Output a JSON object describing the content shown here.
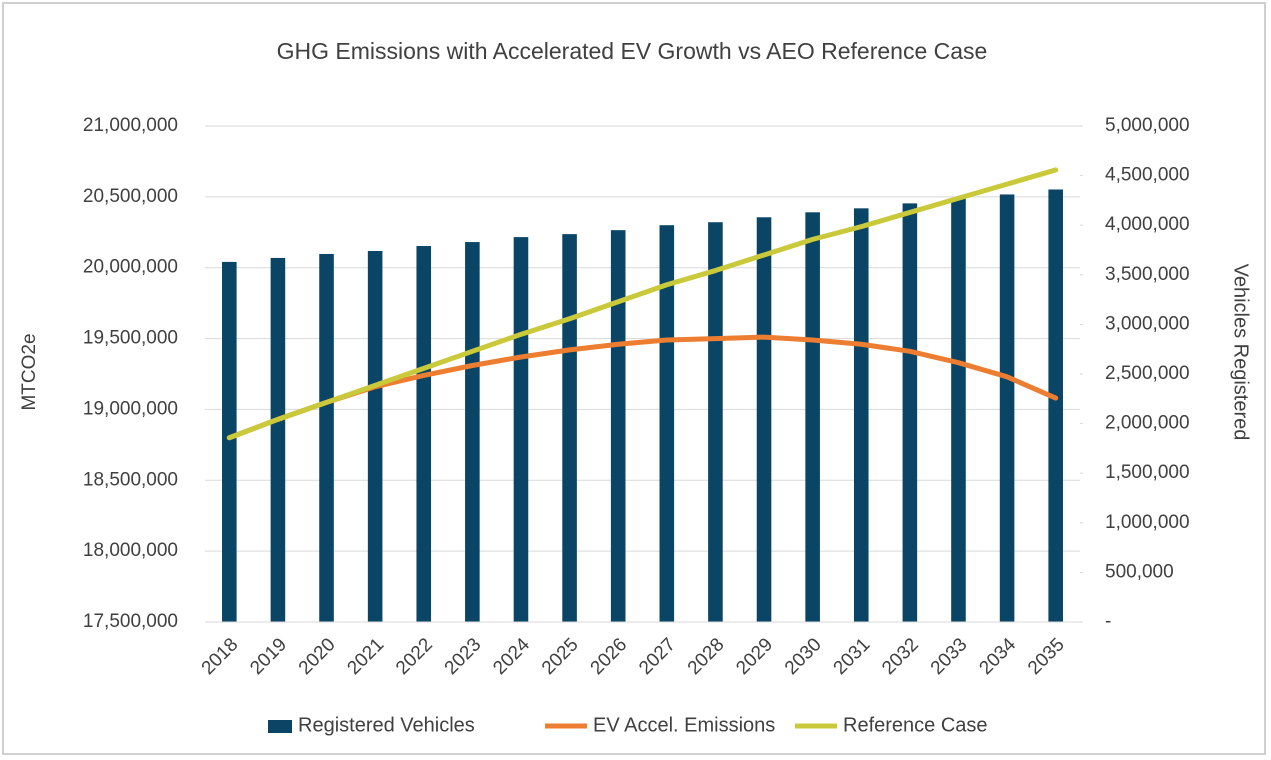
{
  "chart_data": {
    "type": "combo",
    "title": "GHG Emissions with Accelerated EV Growth vs AEO Reference Case",
    "ylabel": "MTCO2e",
    "y2label": "Vehicles Registered",
    "categories": [
      "2018",
      "2019",
      "2020",
      "2021",
      "2022",
      "2023",
      "2024",
      "2025",
      "2026",
      "2027",
      "2028",
      "2029",
      "2030",
      "2031",
      "2032",
      "2033",
      "2034",
      "2035"
    ],
    "series": [
      {
        "name": "Registered Vehicles",
        "type": "bar",
        "axis": "y2",
        "color": "#0b4566",
        "values": [
          3630000,
          3670000,
          3710000,
          3740000,
          3790000,
          3830000,
          3880000,
          3910000,
          3950000,
          4000000,
          4030000,
          4080000,
          4130000,
          4170000,
          4220000,
          4270000,
          4310000,
          4360000
        ]
      },
      {
        "name": "EV Accel. Emissions",
        "type": "line",
        "axis": "y",
        "color": "#ed7d31",
        "values": [
          18800000,
          18930000,
          19050000,
          19160000,
          19240000,
          19310000,
          19370000,
          19420000,
          19460000,
          19490000,
          19500000,
          19510000,
          19490000,
          19460000,
          19410000,
          19330000,
          19230000,
          19080000
        ]
      },
      {
        "name": "Reference Case",
        "type": "line",
        "axis": "y",
        "color": "#c9c93a",
        "values": [
          18800000,
          18930000,
          19050000,
          19170000,
          19290000,
          19410000,
          19530000,
          19640000,
          19760000,
          19880000,
          19980000,
          20090000,
          20200000,
          20290000,
          20390000,
          20490000,
          20590000,
          20690000
        ]
      }
    ],
    "ylim": [
      17500000,
      21000000
    ],
    "yticks": [
      {
        "value": 17500000,
        "label": "17,500,000"
      },
      {
        "value": 18000000,
        "label": "18,000,000"
      },
      {
        "value": 18500000,
        "label": "18,500,000"
      },
      {
        "value": 19000000,
        "label": "19,000,000"
      },
      {
        "value": 19500000,
        "label": "19,500,000"
      },
      {
        "value": 20000000,
        "label": "20,000,000"
      },
      {
        "value": 20500000,
        "label": "20,500,000"
      },
      {
        "value": 21000000,
        "label": "21,000,000"
      }
    ],
    "y2lim": [
      0,
      5000000
    ],
    "y2ticks": [
      {
        "value": 0,
        "label": "-"
      },
      {
        "value": 500000,
        "label": "500,000"
      },
      {
        "value": 1000000,
        "label": "1,000,000"
      },
      {
        "value": 1500000,
        "label": "1,500,000"
      },
      {
        "value": 2000000,
        "label": "2,000,000"
      },
      {
        "value": 2500000,
        "label": "2,500,000"
      },
      {
        "value": 3000000,
        "label": "3,000,000"
      },
      {
        "value": 3500000,
        "label": "3,500,000"
      },
      {
        "value": 4000000,
        "label": "4,000,000"
      },
      {
        "value": 4500000,
        "label": "4,500,000"
      },
      {
        "value": 5000000,
        "label": "5,000,000"
      }
    ],
    "grid": true,
    "legend": "bottom"
  }
}
